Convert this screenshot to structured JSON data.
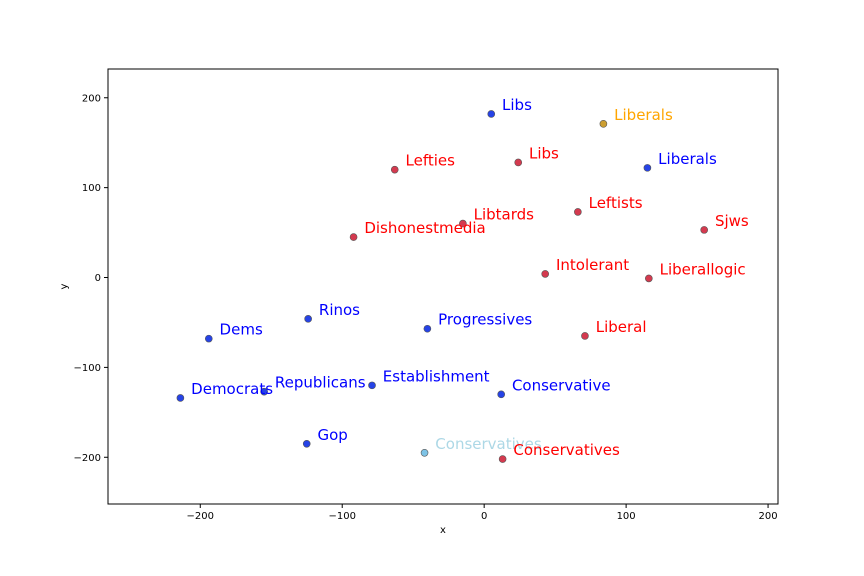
{
  "chart_data": {
    "type": "scatter",
    "title": "",
    "xlabel": "x",
    "ylabel": "y",
    "xlim": [
      -265,
      207
    ],
    "ylim": [
      -252,
      232
    ],
    "xticks": [
      -200,
      -100,
      0,
      100,
      200
    ],
    "yticks": [
      200,
      100,
      0,
      -100,
      -200
    ],
    "xtick_labels": [
      "−200",
      "−100",
      "0",
      "100",
      "200"
    ],
    "ytick_labels": [
      "200",
      "100",
      "0",
      "−100",
      "−200"
    ],
    "grid": false,
    "colors": {
      "blue": "#0000ff",
      "red": "#ff0000",
      "orange": "#ffa500",
      "lightblue": "#add8e6",
      "point_blue": "#2643e6",
      "point_red": "#d43a4f",
      "point_orange": "#cc9e31",
      "point_lightblue": "#7ec3e6"
    },
    "points": [
      {
        "label": "Libs",
        "x": 5,
        "y": 182,
        "color": "blue"
      },
      {
        "label": "Liberals",
        "x": 84,
        "y": 171,
        "color": "orange"
      },
      {
        "label": "Lefties",
        "x": -63,
        "y": 120,
        "color": "red"
      },
      {
        "label": "Libs",
        "x": 24,
        "y": 128,
        "color": "red"
      },
      {
        "label": "Liberals",
        "x": 115,
        "y": 122,
        "color": "blue"
      },
      {
        "label": "Leftists",
        "x": 66,
        "y": 73,
        "color": "red"
      },
      {
        "label": "Libtards",
        "x": -15,
        "y": 60,
        "color": "red"
      },
      {
        "label": "Sjws",
        "x": 155,
        "y": 53,
        "color": "red"
      },
      {
        "label": "Dishonestmedia",
        "x": -92,
        "y": 45,
        "color": "red"
      },
      {
        "label": "Intolerant",
        "x": 43,
        "y": 4,
        "color": "red"
      },
      {
        "label": "Liberallogic",
        "x": 116,
        "y": -1,
        "color": "red"
      },
      {
        "label": "Rinos",
        "x": -124,
        "y": -46,
        "color": "blue"
      },
      {
        "label": "Progressives",
        "x": -40,
        "y": -57,
        "color": "blue"
      },
      {
        "label": "Liberal",
        "x": 71,
        "y": -65,
        "color": "red"
      },
      {
        "label": "Dems",
        "x": -194,
        "y": -68,
        "color": "blue"
      },
      {
        "label": "Establishment",
        "x": -79,
        "y": -120,
        "color": "blue"
      },
      {
        "label": "Republicans",
        "x": -155,
        "y": -127,
        "color": "blue"
      },
      {
        "label": "Democrats",
        "x": -214,
        "y": -134,
        "color": "blue"
      },
      {
        "label": "Conservative",
        "x": 12,
        "y": -130,
        "color": "blue"
      },
      {
        "label": "Gop",
        "x": -125,
        "y": -185,
        "color": "blue"
      },
      {
        "label": "Conservatives",
        "x": -42,
        "y": -195,
        "color": "lightblue"
      },
      {
        "label": "Conservatives",
        "x": 13,
        "y": -202,
        "color": "red"
      }
    ]
  }
}
